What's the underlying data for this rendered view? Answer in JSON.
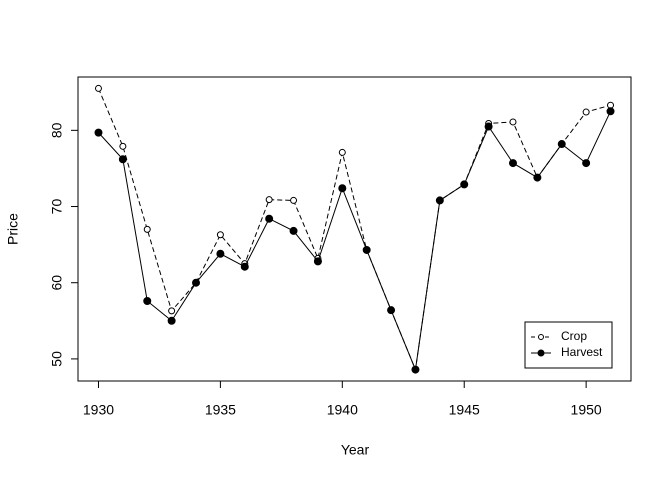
{
  "chart_data": {
    "type": "line",
    "x_label": "Year",
    "y_label": "Price",
    "x": [
      1930,
      1931,
      1932,
      1933,
      1934,
      1935,
      1936,
      1937,
      1938,
      1939,
      1940,
      1941,
      1942,
      1943,
      1944,
      1945,
      1946,
      1947,
      1948,
      1949,
      1950,
      1951
    ],
    "series": [
      {
        "name": "Crop",
        "color": "#000000",
        "line_style": "dashed",
        "marker": "open",
        "values": [
          85.5,
          77.9,
          67.0,
          56.3,
          60.0,
          66.3,
          62.5,
          70.9,
          70.8,
          63.2,
          77.1,
          64.3,
          56.4,
          48.6,
          70.8,
          72.9,
          80.9,
          81.1,
          73.8,
          78.2,
          82.4,
          83.3
        ]
      },
      {
        "name": "Harvest",
        "color": "#000000",
        "line_style": "solid",
        "marker": "filled",
        "values": [
          79.7,
          76.2,
          57.6,
          55.0,
          60.0,
          63.8,
          62.1,
          68.4,
          66.8,
          62.8,
          72.4,
          64.3,
          56.4,
          48.6,
          70.8,
          72.9,
          80.5,
          75.7,
          73.8,
          78.2,
          75.7,
          82.5
        ]
      }
    ],
    "xlim": [
      1929.16,
      1951.84
    ],
    "xticks": [
      1930,
      1935,
      1940,
      1945,
      1950
    ],
    "ylim": [
      47.1,
      87.0
    ],
    "yticks": [
      50,
      60,
      70,
      80
    ],
    "legend": "bottomright"
  }
}
